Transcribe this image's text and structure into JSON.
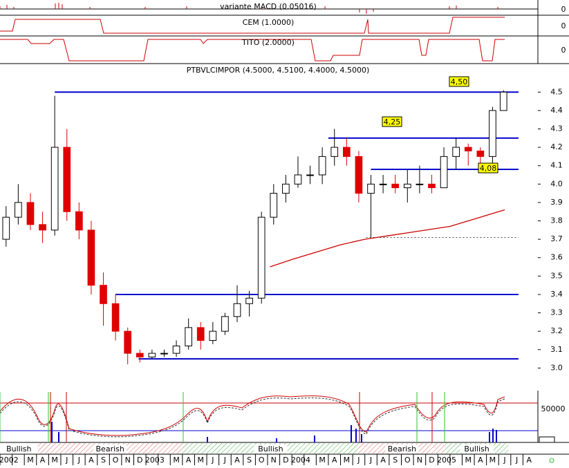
{
  "indicators": [
    {
      "title": "variante MACD (0.05016)",
      "tick": "0"
    },
    {
      "title": "CEM (1.0000)",
      "tick": "0"
    },
    {
      "title": "TITO (2.0000)",
      "tick": "0"
    }
  ],
  "chart_data": {
    "type": "candlestick",
    "title": "PTBVLCIMPOR (4.5000, 4.5100, 4.4000, 4.5000)",
    "x": [
      0.5,
      1.5,
      2.5,
      3.5,
      4.5,
      5.5,
      6.5,
      7.5,
      8.5,
      9.5,
      10.5,
      11.5,
      12.5,
      13.5,
      14.5,
      15.5,
      16.5,
      17.5,
      18.5,
      19.5,
      20.5,
      21.5,
      22.5,
      23.5,
      24.5,
      25.5,
      26.5,
      27.5,
      28.5,
      29.5,
      30.5,
      31.5,
      32.5,
      33.5,
      34.5,
      35.5,
      36.5,
      37.5,
      38.5,
      39.5,
      40.5,
      41.4
    ],
    "open": [
      3.7,
      3.82,
      3.9,
      3.78,
      3.75,
      4.2,
      3.85,
      3.75,
      3.45,
      3.35,
      3.2,
      3.08,
      3.06,
      3.08,
      3.08,
      3.12,
      3.22,
      3.15,
      3.2,
      3.28,
      3.35,
      3.38,
      3.82,
      3.95,
      4.0,
      4.05,
      4.05,
      4.15,
      4.2,
      4.15,
      3.95,
      4.0,
      4.0,
      3.98,
      4.0,
      4.0,
      3.98,
      4.15,
      4.2,
      4.18,
      4.15,
      4.4
    ],
    "high": [
      3.88,
      4.0,
      3.95,
      3.85,
      4.48,
      4.3,
      3.9,
      3.8,
      3.52,
      3.4,
      3.22,
      3.1,
      3.1,
      3.1,
      3.15,
      3.27,
      3.25,
      3.25,
      3.3,
      3.45,
      3.42,
      3.85,
      4.0,
      4.05,
      4.15,
      4.1,
      4.2,
      4.3,
      4.25,
      4.18,
      4.05,
      4.05,
      4.05,
      4.08,
      4.1,
      4.05,
      4.2,
      4.25,
      4.22,
      4.2,
      4.42,
      4.51
    ],
    "low": [
      3.66,
      3.78,
      3.75,
      3.68,
      3.72,
      3.8,
      3.7,
      3.4,
      3.23,
      3.15,
      3.02,
      3.03,
      3.05,
      3.06,
      3.06,
      3.1,
      3.1,
      3.13,
      3.18,
      3.25,
      3.28,
      3.35,
      3.78,
      3.9,
      3.98,
      4.0,
      4.0,
      4.1,
      4.1,
      3.9,
      3.71,
      3.95,
      3.95,
      3.9,
      3.95,
      3.95,
      3.98,
      4.08,
      4.1,
      4.1,
      4.1,
      4.4
    ],
    "close": [
      3.82,
      3.9,
      3.78,
      3.75,
      4.2,
      3.85,
      3.75,
      3.45,
      3.35,
      3.2,
      3.08,
      3.06,
      3.08,
      3.08,
      3.12,
      3.22,
      3.15,
      3.2,
      3.28,
      3.35,
      3.38,
      3.82,
      3.95,
      4.0,
      4.05,
      4.05,
      4.15,
      4.2,
      4.15,
      3.95,
      4.0,
      4.0,
      3.98,
      4.0,
      4.0,
      3.98,
      4.15,
      4.2,
      4.18,
      4.15,
      4.4,
      4.5
    ],
    "color_up": "#000000",
    "color_down": "#e00000",
    "xlim": [
      0,
      44
    ],
    "ylim": [
      2.9,
      4.64
    ],
    "yticks": [
      {
        "value": 3,
        "label": "3.0"
      },
      3.1,
      3.2,
      3.3,
      3.4,
      3.5,
      3.6,
      3.7,
      3.8,
      3.9,
      {
        "value": 4,
        "label": "4.0"
      },
      4.1,
      4.2,
      4.3,
      4.4,
      4.5
    ],
    "months": [
      "2002",
      null,
      "M",
      "A",
      "M",
      "J",
      "J",
      "A",
      "S",
      "O",
      "N",
      "D",
      "2003",
      null,
      "M",
      "A",
      "M",
      "J",
      "J",
      "A",
      "S",
      "O",
      "N",
      "D",
      "2004",
      null,
      "M",
      "A",
      "M",
      "J",
      "J",
      "A",
      "S",
      "O",
      "N",
      "D",
      "2005",
      null,
      "M",
      "A",
      "M",
      "J",
      "J",
      "A"
    ],
    "moving_average": {
      "color": "#cc0000",
      "x": [
        22.2,
        24,
        26,
        28,
        30,
        32,
        34,
        36,
        37,
        38,
        39,
        40,
        41.5
      ],
      "values": [
        3.55,
        3.59,
        3.63,
        3.67,
        3.7,
        3.72,
        3.74,
        3.76,
        3.77,
        3.79,
        3.81,
        3.83,
        3.86
      ]
    },
    "levels": [
      {
        "value": 4.5,
        "from": 4.5
      },
      {
        "value": 4.25,
        "from": 27
      },
      {
        "value": 4.08,
        "from": 30.5
      },
      {
        "value": 3.4,
        "from": 9.5
      },
      {
        "value": 3.05,
        "from": 11.4
      }
    ],
    "support": {
      "value": 3.71,
      "from": 30.1
    },
    "annotations": [
      "4,50",
      "4,25",
      "4,08"
    ],
    "level_color": "#0000cc"
  },
  "volume_panel": {
    "tick": "50000"
  },
  "regimes": [
    {
      "label": "Bullish",
      "from": 0,
      "to": 3.1,
      "color": "#ffffff"
    },
    {
      "label": "Bearish",
      "from": 3.1,
      "to": 15,
      "color": "#e06060"
    },
    {
      "label": "Bullish",
      "from": 15,
      "to": 29.5,
      "color": "#40b040"
    },
    {
      "label": "Bearish",
      "from": 29.5,
      "to": 36.6,
      "color": "#e06060"
    },
    {
      "label": "Bullish",
      "from": 36.6,
      "to": 41.8,
      "color": "#40b040"
    }
  ]
}
